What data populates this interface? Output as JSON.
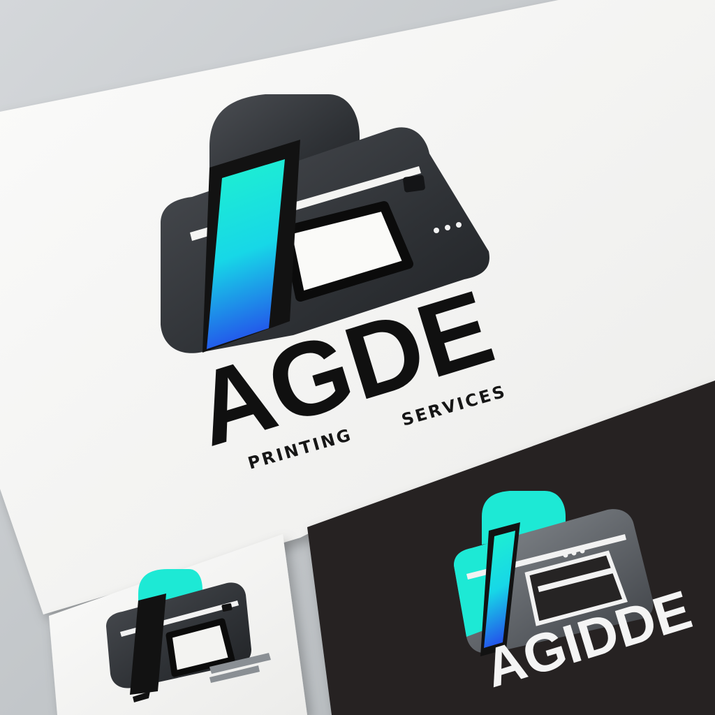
{
  "main_card": {
    "logo_name": "AGDE",
    "tagline_part1": "PRINTING",
    "tagline_part2": "SERVICES"
  },
  "dark_card": {
    "logo_name": "AGIDDE"
  },
  "colors": {
    "accent_cyan": "#1de9d5",
    "accent_blue": "#1f66ea",
    "printer_dark": "#3a3d42",
    "printer_light": "#7a7f85",
    "ink_black": "#121212",
    "paper_white": "#f4f4f2",
    "dark_card_bg": "#262424"
  },
  "icons": [
    "printer-logo-icon"
  ]
}
